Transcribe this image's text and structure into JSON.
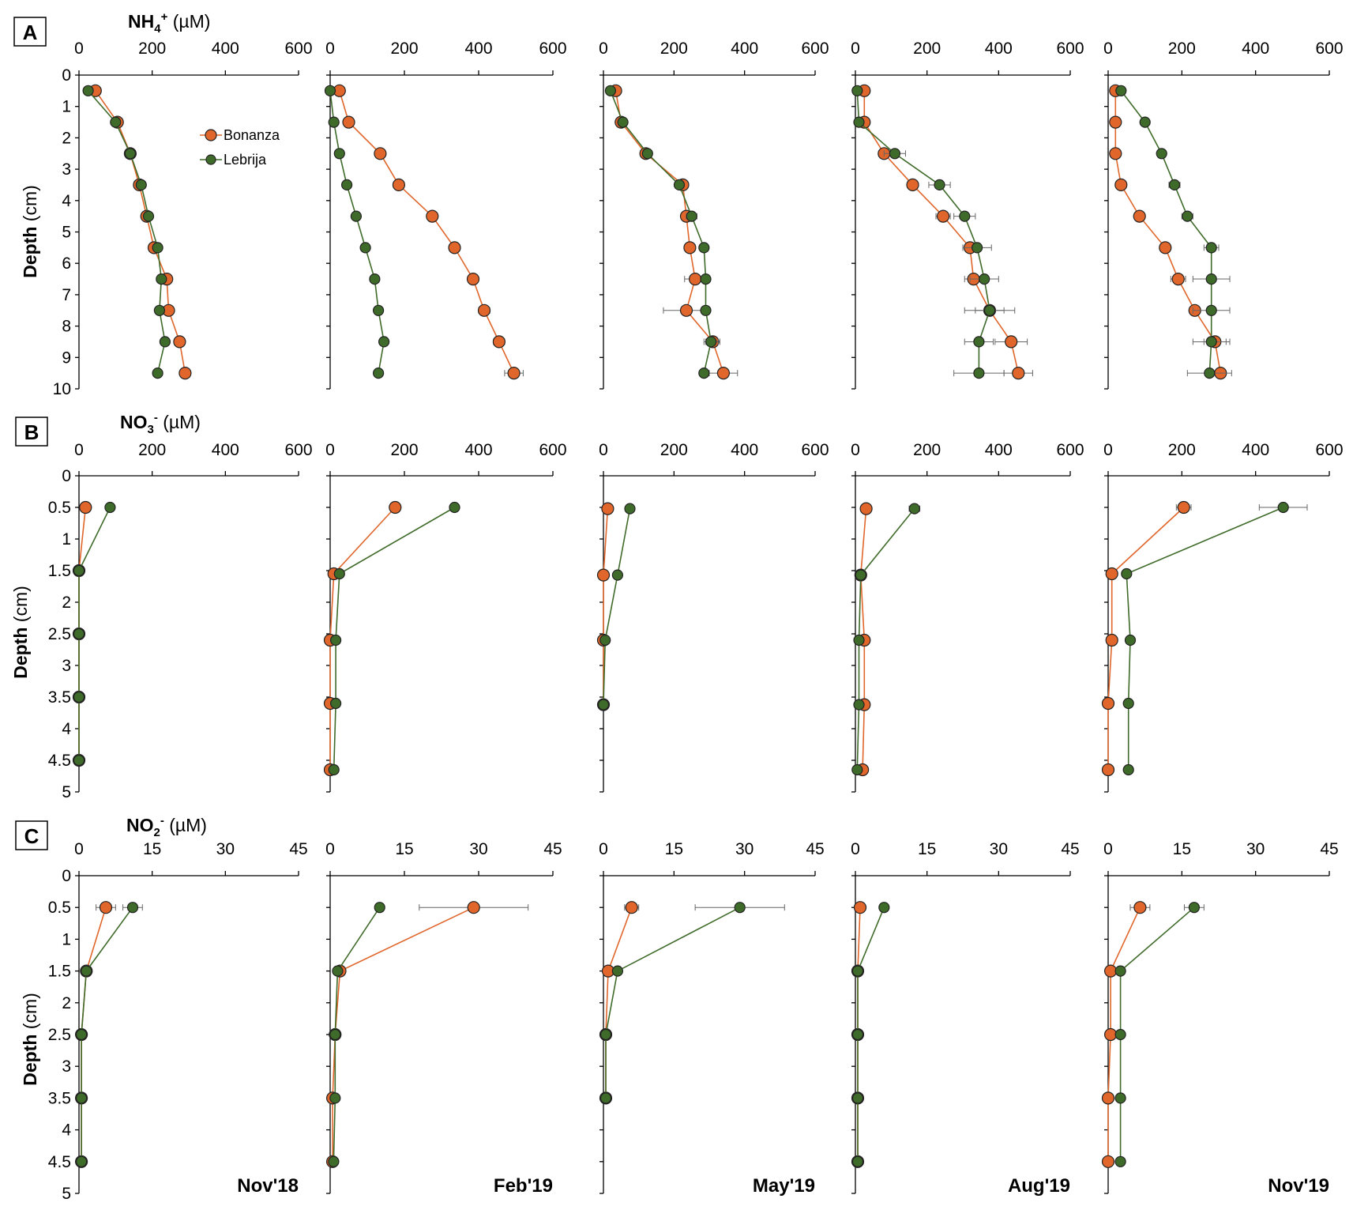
{
  "colors": {
    "bonanza": "#e0662b",
    "lebrija": "#3f6b2a",
    "axis": "#000000",
    "errbar": "#666666"
  },
  "legend": {
    "entries": [
      "Bonanza",
      "Lebrija"
    ],
    "placement": "inside panel A, Nov'18 subplot"
  },
  "months": [
    "Nov'18",
    "Feb'19",
    "May'19",
    "Aug'19",
    "Nov'19"
  ],
  "chart_data": [
    {
      "panel": "A",
      "type": "line",
      "title_main": "NH",
      "title_sub": "4",
      "title_sup": "+",
      "title_unit": " (µM)",
      "ylabel_main": "Depth",
      "ylabel_unit": " (cm)",
      "xlim": [
        0,
        600
      ],
      "x_ticks": [
        "0",
        "200",
        "400",
        "600"
      ],
      "ylim": [
        0,
        10
      ],
      "y_ticks": [
        "0",
        "1",
        "2",
        "3",
        "4",
        "5",
        "6",
        "7",
        "8",
        "9",
        "10"
      ],
      "series_names": [
        "Bonanza",
        "Lebrija"
      ],
      "subplots": [
        {
          "month": "Nov'18",
          "Bonanza": {
            "x": [
              45,
              105,
              140,
              165,
              185,
              205,
              240,
              245,
              275,
              290
            ],
            "depth": [
              0.5,
              1.5,
              2.5,
              3.5,
              4.5,
              5.5,
              6.5,
              7.5,
              8.5,
              9.5
            ],
            "err": [
              0,
              0,
              0,
              0,
              0,
              0,
              0,
              0,
              0,
              0
            ]
          },
          "Lebrija": {
            "x": [
              25,
              100,
              140,
              170,
              190,
              215,
              225,
              220,
              235,
              215
            ],
            "depth": [
              0.5,
              1.5,
              2.5,
              3.5,
              4.5,
              5.5,
              6.5,
              7.5,
              8.5,
              9.5
            ],
            "err": [
              0,
              0,
              0,
              0,
              0,
              0,
              0,
              0,
              0,
              10
            ]
          }
        },
        {
          "month": "Feb'19",
          "Bonanza": {
            "x": [
              25,
              50,
              135,
              185,
              275,
              335,
              385,
              415,
              455,
              495
            ],
            "depth": [
              0.5,
              1.5,
              2.5,
              3.5,
              4.5,
              5.5,
              6.5,
              7.5,
              8.5,
              9.5
            ],
            "err": [
              0,
              0,
              0,
              0,
              0,
              10,
              10,
              15,
              15,
              25
            ]
          },
          "Lebrija": {
            "x": [
              0,
              10,
              25,
              45,
              70,
              95,
              120,
              130,
              145,
              130
            ],
            "depth": [
              0.5,
              1.5,
              2.5,
              3.5,
              4.5,
              5.5,
              6.5,
              7.5,
              8.5,
              9.5
            ],
            "err": [
              0,
              0,
              0,
              0,
              0,
              0,
              0,
              0,
              0,
              0
            ]
          }
        },
        {
          "month": "May'19",
          "Bonanza": {
            "x": [
              35,
              50,
              120,
              225,
              235,
              245,
              260,
              235,
              310,
              340
            ],
            "depth": [
              0.5,
              1.5,
              2.5,
              3.5,
              4.5,
              5.5,
              6.5,
              7.5,
              8.5,
              9.5
            ],
            "err": [
              0,
              0,
              15,
              10,
              10,
              15,
              30,
              65,
              20,
              40
            ]
          },
          "Lebrija": {
            "x": [
              20,
              55,
              125,
              215,
              250,
              285,
              290,
              290,
              305,
              285
            ],
            "depth": [
              0.5,
              1.5,
              2.5,
              3.5,
              4.5,
              5.5,
              6.5,
              7.5,
              8.5,
              9.5
            ],
            "err": [
              0,
              0,
              0,
              10,
              15,
              0,
              0,
              0,
              20,
              0
            ]
          }
        },
        {
          "month": "Aug'19",
          "Bonanza": {
            "x": [
              25,
              25,
              80,
              160,
              245,
              320,
              330,
              375,
              435,
              455
            ],
            "depth": [
              0.5,
              1.5,
              2.5,
              3.5,
              4.5,
              5.5,
              6.5,
              7.5,
              8.5,
              9.5
            ],
            "err": [
              0,
              0,
              15,
              0,
              20,
              20,
              25,
              40,
              45,
              40
            ]
          },
          "Lebrija": {
            "x": [
              5,
              10,
              110,
              235,
              305,
              340,
              360,
              375,
              345,
              345
            ],
            "depth": [
              0.5,
              1.5,
              2.5,
              3.5,
              4.5,
              5.5,
              6.5,
              7.5,
              8.5,
              9.5
            ],
            "err": [
              0,
              0,
              30,
              30,
              30,
              40,
              40,
              70,
              40,
              70
            ]
          }
        },
        {
          "month": "Nov'19",
          "Bonanza": {
            "x": [
              20,
              20,
              20,
              35,
              85,
              155,
              190,
              235,
              290,
              305
            ],
            "depth": [
              0.5,
              1.5,
              2.5,
              3.5,
              4.5,
              5.5,
              6.5,
              7.5,
              8.5,
              9.5
            ],
            "err": [
              0,
              0,
              0,
              0,
              0,
              0,
              20,
              0,
              30,
              0
            ]
          },
          "Lebrija": {
            "x": [
              35,
              100,
              145,
              180,
              215,
              280,
              280,
              280,
              280,
              275
            ],
            "depth": [
              0.5,
              1.5,
              2.5,
              3.5,
              4.5,
              5.5,
              6.5,
              7.5,
              8.5,
              9.5
            ],
            "err": [
              0,
              0,
              0,
              15,
              15,
              20,
              50,
              50,
              50,
              60
            ]
          }
        }
      ]
    },
    {
      "panel": "B",
      "type": "line",
      "title_main": "NO",
      "title_sub": "3",
      "title_sup": "-",
      "title_unit": " (µM)",
      "ylabel_main": "Depth",
      "ylabel_unit": " (cm)",
      "xlim": [
        0,
        600
      ],
      "x_ticks": [
        "0",
        "200",
        "400",
        "600"
      ],
      "ylim": [
        0,
        5
      ],
      "y_ticks": [
        "0",
        "0.5",
        "1",
        "1.5",
        "2",
        "2.5",
        "3",
        "3.5",
        "4",
        "4.5",
        "5"
      ],
      "series_names": [
        "Bonanza",
        "Lebrija"
      ],
      "subplots": [
        {
          "month": "Nov'18",
          "Bonanza": {
            "x": [
              18,
              0,
              0,
              0,
              0
            ],
            "depth": [
              0.5,
              1.5,
              2.5,
              3.5,
              4.5
            ],
            "err": [
              0,
              0,
              0,
              0,
              0
            ]
          },
          "Lebrija": {
            "x": [
              85,
              0,
              0,
              0,
              0
            ],
            "depth": [
              0.5,
              1.5,
              2.5,
              3.5,
              4.5
            ],
            "err": [
              0,
              0,
              0,
              0,
              0
            ]
          }
        },
        {
          "month": "Feb'19",
          "Bonanza": {
            "x": [
              175,
              10,
              0,
              0,
              0
            ],
            "depth": [
              0.5,
              1.55,
              2.6,
              3.6,
              4.65
            ],
            "err": [
              0,
              0,
              0,
              0,
              0
            ]
          },
          "Lebrija": {
            "x": [
              335,
              25,
              15,
              15,
              10
            ],
            "depth": [
              0.5,
              1.55,
              2.6,
              3.6,
              4.65
            ],
            "err": [
              0,
              0,
              0,
              0,
              0
            ]
          }
        },
        {
          "month": "May'19",
          "Bonanza": {
            "x": [
              12,
              0,
              0,
              0
            ],
            "depth": [
              0.52,
              1.57,
              2.6,
              3.62
            ],
            "err": [
              0,
              0,
              0,
              0
            ]
          },
          "Lebrija": {
            "x": [
              75,
              40,
              5,
              0
            ],
            "depth": [
              0.52,
              1.57,
              2.6,
              3.62
            ],
            "err": [
              0,
              0,
              0,
              0
            ]
          }
        },
        {
          "month": "Aug'19",
          "Bonanza": {
            "x": [
              30,
              15,
              25,
              25,
              20
            ],
            "depth": [
              0.52,
              1.57,
              2.6,
              3.62,
              4.65
            ],
            "err": [
              0,
              0,
              0,
              0,
              0
            ]
          },
          "Lebrija": {
            "x": [
              165,
              15,
              10,
              10,
              5
            ],
            "depth": [
              0.52,
              1.57,
              2.6,
              3.62,
              4.65
            ],
            "err": [
              15,
              0,
              0,
              0,
              0
            ]
          }
        },
        {
          "month": "Nov'19",
          "Bonanza": {
            "x": [
              205,
              10,
              10,
              0,
              0
            ],
            "depth": [
              0.5,
              1.55,
              2.6,
              3.6,
              4.65
            ],
            "err": [
              20,
              0,
              0,
              0,
              0
            ]
          },
          "Lebrija": {
            "x": [
              475,
              50,
              60,
              55,
              55
            ],
            "depth": [
              0.5,
              1.55,
              2.6,
              3.6,
              4.65
            ],
            "err": [
              65,
              0,
              0,
              0,
              0
            ]
          }
        }
      ]
    },
    {
      "panel": "C",
      "type": "line",
      "title_main": "NO",
      "title_sub": "2",
      "title_sup": "-",
      "title_unit": " (µM)",
      "ylabel_main": "Depth",
      "ylabel_unit": " (cm)",
      "xlim": [
        0,
        45
      ],
      "x_ticks": [
        "0",
        "15",
        "30",
        "45"
      ],
      "ylim": [
        0,
        5
      ],
      "y_ticks": [
        "0",
        "0.5",
        "1",
        "1.5",
        "2",
        "2.5",
        "3",
        "3.5",
        "4",
        "4.5",
        "5"
      ],
      "series_names": [
        "Bonanza",
        "Lebrija"
      ],
      "subplots": [
        {
          "month": "Nov'18",
          "Bonanza": {
            "x": [
              5.5,
              1.5,
              0.5,
              0.5,
              0.5
            ],
            "depth": [
              0.5,
              1.5,
              2.5,
              3.5,
              4.5
            ],
            "err": [
              2,
              0,
              0,
              0,
              0
            ]
          },
          "Lebrija": {
            "x": [
              11,
              1.5,
              0.5,
              0.5,
              0.5
            ],
            "depth": [
              0.5,
              1.5,
              2.5,
              3.5,
              4.5
            ],
            "err": [
              2,
              0,
              0,
              0,
              0
            ]
          }
        },
        {
          "month": "Feb'19",
          "Bonanza": {
            "x": [
              29,
              2,
              1,
              0.5,
              0.5
            ],
            "depth": [
              0.5,
              1.5,
              2.5,
              3.5,
              4.5
            ],
            "err": [
              11,
              0,
              0,
              0,
              0
            ]
          },
          "Lebrija": {
            "x": [
              10,
              1.5,
              1,
              1,
              0.7
            ],
            "depth": [
              0.5,
              1.5,
              2.5,
              3.5,
              4.5
            ],
            "err": [
              0,
              0,
              0,
              0,
              0
            ]
          }
        },
        {
          "month": "May'19",
          "Bonanza": {
            "x": [
              6,
              1,
              0.5,
              0.5
            ],
            "depth": [
              0.5,
              1.5,
              2.5,
              3.5
            ],
            "err": [
              1.5,
              0,
              0,
              0
            ]
          },
          "Lebrija": {
            "x": [
              29,
              3,
              0.5,
              0.5
            ],
            "depth": [
              0.5,
              1.5,
              2.5,
              3.5
            ],
            "err": [
              9.5,
              0,
              0,
              0
            ]
          }
        },
        {
          "month": "Aug'19",
          "Bonanza": {
            "x": [
              1,
              0.5,
              0.5,
              0.5,
              0.5
            ],
            "depth": [
              0.5,
              1.5,
              2.5,
              3.5,
              4.5
            ],
            "err": [
              0,
              0,
              0,
              0,
              0
            ]
          },
          "Lebrija": {
            "x": [
              6,
              0.5,
              0.5,
              0.5,
              0.5
            ],
            "depth": [
              0.5,
              1.5,
              2.5,
              3.5,
              4.5
            ],
            "err": [
              0,
              0,
              0,
              0,
              0
            ]
          }
        },
        {
          "month": "Nov'19",
          "Bonanza": {
            "x": [
              6.5,
              0.5,
              0.5,
              0,
              0
            ],
            "depth": [
              0.5,
              1.5,
              2.5,
              3.5,
              4.5
            ],
            "err": [
              2,
              0,
              0,
              0,
              0
            ]
          },
          "Lebrija": {
            "x": [
              17.5,
              2.5,
              2.5,
              2.5,
              2.5
            ],
            "depth": [
              0.5,
              1.5,
              2.5,
              3.5,
              4.5
            ],
            "err": [
              2,
              0,
              0,
              0,
              0
            ]
          }
        }
      ]
    }
  ]
}
